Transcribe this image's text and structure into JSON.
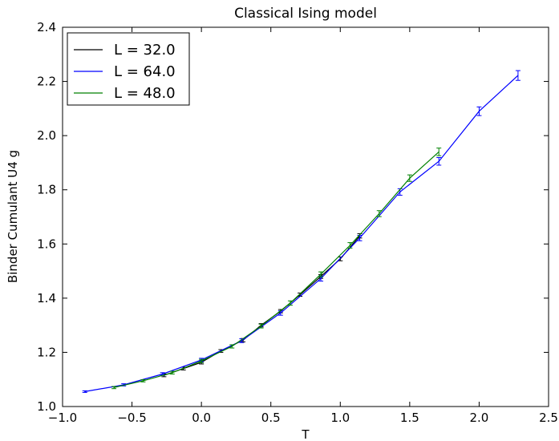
{
  "chart_data": {
    "type": "line",
    "title": "Classical Ising model",
    "xlabel": "T",
    "ylabel": "Binder Cumulant U4 g",
    "xlim": [
      -1.0,
      2.5
    ],
    "ylim": [
      1.0,
      2.4
    ],
    "xticks": [
      -1.0,
      -0.5,
      0.0,
      0.5,
      1.0,
      1.5,
      2.0,
      2.5
    ],
    "xtick_labels": [
      "−1.0",
      "−0.5",
      "0.0",
      "0.5",
      "1.0",
      "1.5",
      "2.0",
      "2.5"
    ],
    "yticks": [
      1.0,
      1.2,
      1.4,
      1.6,
      1.8,
      2.0,
      2.2,
      2.4
    ],
    "ytick_labels": [
      "1.0",
      "1.2",
      "1.4",
      "1.6",
      "1.8",
      "2.0",
      "2.2",
      "2.4"
    ],
    "grid": false,
    "legend_position": "top-left",
    "error_bars": true,
    "series": [
      {
        "name": "L = 32.0",
        "color": "#000000",
        "points": [
          {
            "x": -0.27,
            "y": 1.115,
            "err": 0.005
          },
          {
            "x": -0.13,
            "y": 1.14,
            "err": 0.005
          },
          {
            "x": 0.0,
            "y": 1.163,
            "err": 0.006
          },
          {
            "x": 0.14,
            "y": 1.205,
            "err": 0.005
          },
          {
            "x": 0.3,
            "y": 1.245,
            "err": 0.006
          },
          {
            "x": 0.43,
            "y": 1.3,
            "err": 0.006
          },
          {
            "x": 0.57,
            "y": 1.352,
            "err": 0.006
          },
          {
            "x": 0.71,
            "y": 1.413,
            "err": 0.006
          },
          {
            "x": 0.86,
            "y": 1.48,
            "err": 0.007
          },
          {
            "x": 1.0,
            "y": 1.545,
            "err": 0.007
          },
          {
            "x": 1.14,
            "y": 1.63,
            "err": 0.008
          }
        ]
      },
      {
        "name": "L = 64.0",
        "color": "#0000ff",
        "points": [
          {
            "x": -0.84,
            "y": 1.055,
            "err": 0.003
          },
          {
            "x": -0.56,
            "y": 1.08,
            "err": 0.004
          },
          {
            "x": -0.28,
            "y": 1.12,
            "err": 0.005
          },
          {
            "x": 0.0,
            "y": 1.172,
            "err": 0.006
          },
          {
            "x": 0.29,
            "y": 1.243,
            "err": 0.007
          },
          {
            "x": 0.57,
            "y": 1.345,
            "err": 0.008
          },
          {
            "x": 0.86,
            "y": 1.472,
            "err": 0.009
          },
          {
            "x": 1.14,
            "y": 1.622,
            "err": 0.01
          },
          {
            "x": 1.43,
            "y": 1.792,
            "err": 0.012
          },
          {
            "x": 1.71,
            "y": 1.905,
            "err": 0.014
          },
          {
            "x": 2.0,
            "y": 2.09,
            "err": 0.016
          },
          {
            "x": 2.28,
            "y": 2.222,
            "err": 0.018
          }
        ]
      },
      {
        "name": "L = 48.0",
        "color": "#008000",
        "points": [
          {
            "x": -0.63,
            "y": 1.07,
            "err": 0.004
          },
          {
            "x": -0.42,
            "y": 1.095,
            "err": 0.004
          },
          {
            "x": -0.21,
            "y": 1.125,
            "err": 0.005
          },
          {
            "x": 0.0,
            "y": 1.168,
            "err": 0.006
          },
          {
            "x": 0.22,
            "y": 1.222,
            "err": 0.006
          },
          {
            "x": 0.43,
            "y": 1.297,
            "err": 0.007
          },
          {
            "x": 0.64,
            "y": 1.382,
            "err": 0.008
          },
          {
            "x": 0.86,
            "y": 1.488,
            "err": 0.009
          },
          {
            "x": 1.07,
            "y": 1.595,
            "err": 0.01
          },
          {
            "x": 1.28,
            "y": 1.712,
            "err": 0.011
          },
          {
            "x": 1.5,
            "y": 1.843,
            "err": 0.012
          },
          {
            "x": 1.71,
            "y": 1.94,
            "err": 0.014
          }
        ]
      }
    ]
  }
}
